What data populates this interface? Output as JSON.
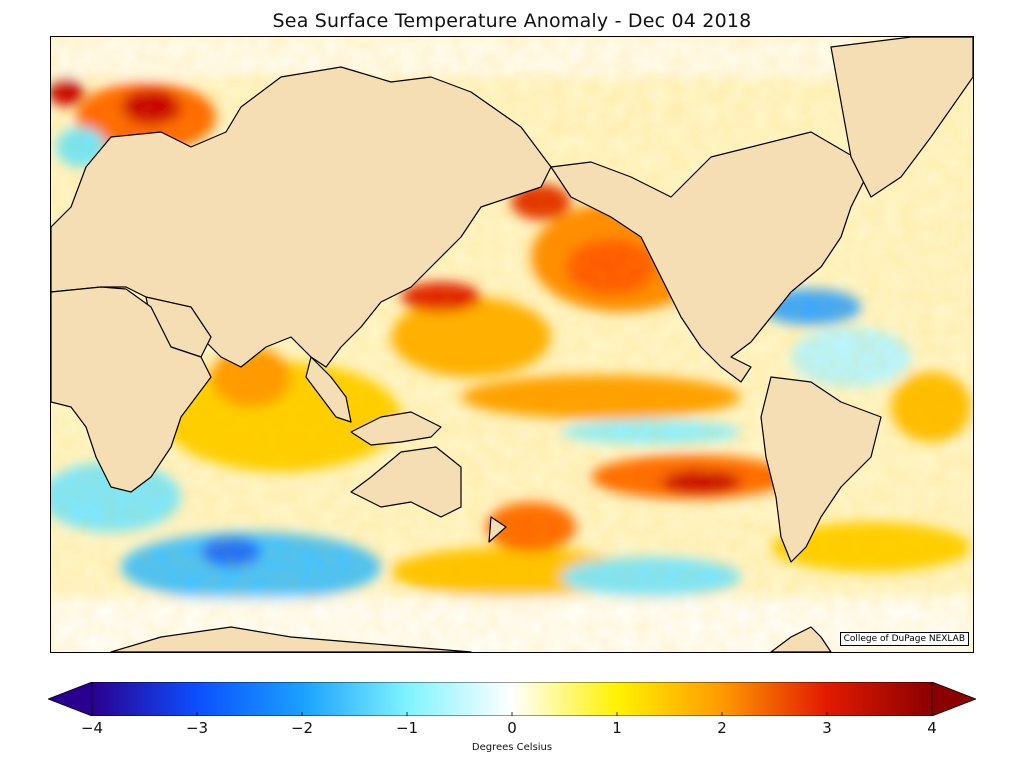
{
  "title": "Sea Surface Temperature Anomaly - Dec 04 2018",
  "credit": "College of DuPage NEXLAB",
  "colorbar": {
    "label": "Degrees Celsius",
    "min": -4,
    "max": 4,
    "ticks": [
      "−4",
      "−3",
      "−2",
      "−1",
      "0",
      "1",
      "2",
      "3",
      "4"
    ],
    "extend": "both",
    "colors": [
      "#2a0090",
      "#0c4fff",
      "#1aa0ff",
      "#7ff3ff",
      "#ffffff",
      "#fff200",
      "#ff9a00",
      "#e21a00",
      "#8c0000"
    ]
  },
  "colors": {
    "land": "#f5deb3",
    "coastline": "#000000",
    "borders": "#888888",
    "ocean_base": "#fff3b0"
  }
}
